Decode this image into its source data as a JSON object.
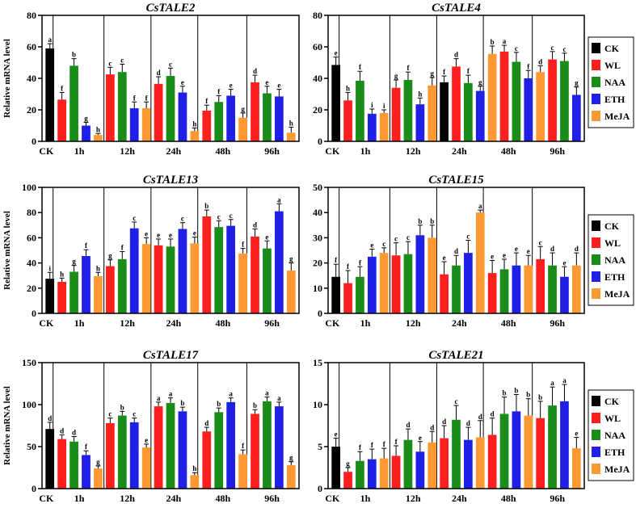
{
  "y_label": "Relative mRNA level",
  "legend": {
    "entries": [
      "CK",
      "WL",
      "NAA",
      "ETH",
      "MeJA"
    ],
    "colors": [
      "#000000",
      "#ff1f1f",
      "#1a8c1a",
      "#1f1fe6",
      "#ff9933"
    ]
  },
  "chart_data": [
    {
      "type": "bar",
      "title": "CsTALE2",
      "ylim": [
        0,
        80
      ],
      "yticks": [
        0,
        20,
        40,
        60,
        80
      ],
      "groups": [
        "CK",
        "1h",
        "12h",
        "24h",
        "48h",
        "96h"
      ],
      "bars": [
        {
          "series": "CK",
          "value": 59,
          "error": 3,
          "label": "a"
        },
        {
          "series": "WL",
          "value": 26.5,
          "error": 4.5,
          "label": "f"
        },
        {
          "series": "NAA",
          "value": 48,
          "error": 4.5,
          "label": "b"
        },
        {
          "series": "ETH",
          "value": 10,
          "error": 2,
          "label": "g"
        },
        {
          "series": "MeJA",
          "value": 4,
          "error": 1,
          "label": "h"
        },
        {
          "series": "WL",
          "value": 42.5,
          "error": 4.5,
          "label": "c"
        },
        {
          "series": "NAA",
          "value": 44,
          "error": 5,
          "label": "c"
        },
        {
          "series": "ETH",
          "value": 21,
          "error": 4,
          "label": "f"
        },
        {
          "series": "MeJA",
          "value": 21,
          "error": 4,
          "label": "f"
        },
        {
          "series": "WL",
          "value": 36.5,
          "error": 4.5,
          "label": "d"
        },
        {
          "series": "NAA",
          "value": 41.5,
          "error": 5,
          "label": "c"
        },
        {
          "series": "ETH",
          "value": 31,
          "error": 4,
          "label": "e"
        },
        {
          "series": "MeJA",
          "value": 6.5,
          "error": 2,
          "label": "h"
        },
        {
          "series": "WL",
          "value": 19.5,
          "error": 3.5,
          "label": "f"
        },
        {
          "series": "NAA",
          "value": 25,
          "error": 4,
          "label": "f"
        },
        {
          "series": "ETH",
          "value": 29,
          "error": 4,
          "label": "e"
        },
        {
          "series": "MeJA",
          "value": 15,
          "error": 3,
          "label": "g"
        },
        {
          "series": "WL",
          "value": 37.5,
          "error": 4.5,
          "label": "d"
        },
        {
          "series": "NAA",
          "value": 30.5,
          "error": 4.5,
          "label": "e"
        },
        {
          "series": "ETH",
          "value": 28.5,
          "error": 4.5,
          "label": "e"
        },
        {
          "series": "MeJA",
          "value": 5.5,
          "error": 3.5,
          "label": "h"
        }
      ]
    },
    {
      "type": "bar",
      "title": "CsTALE4",
      "ylim": [
        0,
        80
      ],
      "yticks": [
        0,
        20,
        40,
        60,
        80
      ],
      "groups": [
        "CK",
        "1h",
        "12h",
        "24h",
        "48h",
        "96h"
      ],
      "bars": [
        {
          "series": "CK",
          "value": 48.5,
          "error": 5,
          "label": "e"
        },
        {
          "series": "WL",
          "value": 26,
          "error": 5,
          "label": "h"
        },
        {
          "series": "NAA",
          "value": 38.5,
          "error": 6,
          "label": "f"
        },
        {
          "series": "ETH",
          "value": 17.5,
          "error": 3,
          "label": "i"
        },
        {
          "series": "MeJA",
          "value": 18,
          "error": 2,
          "label": "i"
        },
        {
          "series": "WL",
          "value": 34,
          "error": 5,
          "label": "g"
        },
        {
          "series": "NAA",
          "value": 39,
          "error": 5,
          "label": "f"
        },
        {
          "series": "ETH",
          "value": 23.5,
          "error": 4,
          "label": "h"
        },
        {
          "series": "MeJA",
          "value": 35.5,
          "error": 5,
          "label": "g"
        },
        {
          "series": "CK",
          "value": 37.5,
          "error": 4,
          "label": "f"
        },
        {
          "series": "WL",
          "value": 47.5,
          "error": 5,
          "label": "d"
        },
        {
          "series": "NAA",
          "value": 37,
          "error": 5,
          "label": "f"
        },
        {
          "series": "ETH",
          "value": 32,
          "error": 3,
          "label": "g"
        },
        {
          "series": "MeJA",
          "value": 55.5,
          "error": 5,
          "label": "b"
        },
        {
          "series": "WL",
          "value": 57,
          "error": 4,
          "label": "a"
        },
        {
          "series": "NAA",
          "value": 50.5,
          "error": 6,
          "label": "c"
        },
        {
          "series": "ETH",
          "value": 40,
          "error": 5,
          "label": "f"
        },
        {
          "series": "MeJA",
          "value": 44,
          "error": 4,
          "label": "d"
        },
        {
          "series": "WL",
          "value": 52,
          "error": 5,
          "label": "c"
        },
        {
          "series": "NAA",
          "value": 51,
          "error": 5,
          "label": "c"
        },
        {
          "series": "ETH",
          "value": 29.5,
          "error": 5,
          "label": "g"
        }
      ]
    },
    {
      "type": "bar",
      "title": "CsTALE13",
      "ylim": [
        0,
        100
      ],
      "yticks": [
        0,
        20,
        40,
        60,
        80,
        100
      ],
      "groups": [
        "CK",
        "1h",
        "12h",
        "24h",
        "48h",
        "96h"
      ],
      "bars": [
        {
          "series": "CK",
          "value": 27.5,
          "error": 5,
          "label": "i"
        },
        {
          "series": "WL",
          "value": 25,
          "error": 3,
          "label": "h"
        },
        {
          "series": "NAA",
          "value": 33,
          "error": 5,
          "label": "g"
        },
        {
          "series": "ETH",
          "value": 45.5,
          "error": 5,
          "label": "f"
        },
        {
          "series": "MeJA",
          "value": 29.5,
          "error": 3,
          "label": "h"
        },
        {
          "series": "WL",
          "value": 37.5,
          "error": 5,
          "label": "g"
        },
        {
          "series": "NAA",
          "value": 43,
          "error": 6,
          "label": "f"
        },
        {
          "series": "ETH",
          "value": 67.5,
          "error": 5,
          "label": "c"
        },
        {
          "series": "MeJA",
          "value": 55,
          "error": 5,
          "label": "e"
        },
        {
          "series": "WL",
          "value": 54,
          "error": 5,
          "label": "e"
        },
        {
          "series": "NAA",
          "value": 53,
          "error": 6,
          "label": "e"
        },
        {
          "series": "ETH",
          "value": 67,
          "error": 5,
          "label": "c"
        },
        {
          "series": "MeJA",
          "value": 55.5,
          "error": 5,
          "label": "e"
        },
        {
          "series": "WL",
          "value": 77,
          "error": 5,
          "label": "b"
        },
        {
          "series": "NAA",
          "value": 68.5,
          "error": 5,
          "label": "c"
        },
        {
          "series": "ETH",
          "value": 69.5,
          "error": 5,
          "label": "c"
        },
        {
          "series": "MeJA",
          "value": 47.5,
          "error": 4,
          "label": "f"
        },
        {
          "series": "WL",
          "value": 61,
          "error": 6,
          "label": "d"
        },
        {
          "series": "NAA",
          "value": 51.5,
          "error": 6,
          "label": "e"
        },
        {
          "series": "ETH",
          "value": 81,
          "error": 6,
          "label": "a"
        },
        {
          "series": "MeJA",
          "value": 34,
          "error": 6,
          "label": "g"
        }
      ]
    },
    {
      "type": "bar",
      "title": "CsTALE15",
      "ylim": [
        0,
        50
      ],
      "yticks": [
        0,
        10,
        20,
        30,
        40,
        50
      ],
      "groups": [
        "CK",
        "1h",
        "12h",
        "24h",
        "48h",
        "96h"
      ],
      "bars": [
        {
          "series": "CK",
          "value": 14.5,
          "error": 5,
          "label": "f"
        },
        {
          "series": "WL",
          "value": 12,
          "error": 5,
          "label": "f"
        },
        {
          "series": "NAA",
          "value": 14.5,
          "error": 4,
          "label": "f"
        },
        {
          "series": "ETH",
          "value": 22.5,
          "error": 3,
          "label": "e"
        },
        {
          "series": "MeJA",
          "value": 24,
          "error": 2,
          "label": "c"
        },
        {
          "series": "WL",
          "value": 23,
          "error": 5,
          "label": "c"
        },
        {
          "series": "NAA",
          "value": 23.5,
          "error": 5,
          "label": "c"
        },
        {
          "series": "ETH",
          "value": 31,
          "error": 4,
          "label": "b"
        },
        {
          "series": "MeJA",
          "value": 30,
          "error": 5,
          "label": "b"
        },
        {
          "series": "WL",
          "value": 15.5,
          "error": 5,
          "label": "e"
        },
        {
          "series": "NAA",
          "value": 19,
          "error": 4,
          "label": "d"
        },
        {
          "series": "ETH",
          "value": 24,
          "error": 5,
          "label": "c"
        },
        {
          "series": "MeJA",
          "value": 40,
          "error": 1,
          "label": "a"
        },
        {
          "series": "WL",
          "value": 16,
          "error": 5,
          "label": "e"
        },
        {
          "series": "NAA",
          "value": 17.5,
          "error": 4,
          "label": "e"
        },
        {
          "series": "ETH",
          "value": 19,
          "error": 5,
          "label": "e"
        },
        {
          "series": "MeJA",
          "value": 19,
          "error": 4,
          "label": "e"
        },
        {
          "series": "WL",
          "value": 21.5,
          "error": 5,
          "label": "c"
        },
        {
          "series": "NAA",
          "value": 19,
          "error": 5,
          "label": "d"
        },
        {
          "series": "ETH",
          "value": 14.5,
          "error": 4,
          "label": "e"
        },
        {
          "series": "MeJA",
          "value": 19,
          "error": 5,
          "label": "d"
        }
      ]
    },
    {
      "type": "bar",
      "title": "CsTALE17",
      "ylim": [
        0,
        150
      ],
      "yticks": [
        0,
        50,
        100,
        150
      ],
      "groups": [
        "CK",
        "1h",
        "12h",
        "24h",
        "48h",
        "96h"
      ],
      "bars": [
        {
          "series": "CK",
          "value": 71,
          "error": 8,
          "label": "d"
        },
        {
          "series": "WL",
          "value": 59,
          "error": 5,
          "label": "d"
        },
        {
          "series": "NAA",
          "value": 56,
          "error": 6,
          "label": "d"
        },
        {
          "series": "ETH",
          "value": 40,
          "error": 5,
          "label": "f"
        },
        {
          "series": "MeJA",
          "value": 24,
          "error": 3,
          "label": "g"
        },
        {
          "series": "WL",
          "value": 78,
          "error": 6,
          "label": "c"
        },
        {
          "series": "NAA",
          "value": 87,
          "error": 5,
          "label": "b"
        },
        {
          "series": "ETH",
          "value": 79,
          "error": 5,
          "label": "c"
        },
        {
          "series": "MeJA",
          "value": 49,
          "error": 4,
          "label": "e"
        },
        {
          "series": "WL",
          "value": 98,
          "error": 5,
          "label": "a"
        },
        {
          "series": "NAA",
          "value": 102,
          "error": 6,
          "label": "a"
        },
        {
          "series": "ETH",
          "value": 92,
          "error": 5,
          "label": "b"
        },
        {
          "series": "MeJA",
          "value": 16,
          "error": 3,
          "label": "h"
        },
        {
          "series": "WL",
          "value": 68,
          "error": 5,
          "label": "d"
        },
        {
          "series": "NAA",
          "value": 91,
          "error": 5,
          "label": "b"
        },
        {
          "series": "ETH",
          "value": 103,
          "error": 5,
          "label": "a"
        },
        {
          "series": "MeJA",
          "value": 41,
          "error": 5,
          "label": "f"
        },
        {
          "series": "WL",
          "value": 89,
          "error": 5,
          "label": "b"
        },
        {
          "series": "NAA",
          "value": 104,
          "error": 5,
          "label": "a"
        },
        {
          "series": "ETH",
          "value": 98,
          "error": 5,
          "label": "a"
        },
        {
          "series": "MeJA",
          "value": 28,
          "error": 4,
          "label": "g"
        }
      ]
    },
    {
      "type": "bar",
      "title": "CsTALE21",
      "ylim": [
        0,
        15
      ],
      "yticks": [
        0,
        5,
        10,
        15
      ],
      "groups": [
        "CK",
        "1h",
        "12h",
        "24h",
        "48h",
        "96h"
      ],
      "bars": [
        {
          "series": "CK",
          "value": 5,
          "error": 1,
          "label": "e"
        },
        {
          "series": "WL",
          "value": 2,
          "error": 0.5,
          "label": "g"
        },
        {
          "series": "NAA",
          "value": 3.3,
          "error": 1.1,
          "label": "f"
        },
        {
          "series": "ETH",
          "value": 3.5,
          "error": 1.2,
          "label": "f"
        },
        {
          "series": "MeJA",
          "value": 3.6,
          "error": 1.2,
          "label": "f"
        },
        {
          "series": "WL",
          "value": 3.9,
          "error": 1.2,
          "label": "f"
        },
        {
          "series": "NAA",
          "value": 5.8,
          "error": 1.3,
          "label": "d"
        },
        {
          "series": "ETH",
          "value": 4.4,
          "error": 1.2,
          "label": "e"
        },
        {
          "series": "MeJA",
          "value": 5.5,
          "error": 1.3,
          "label": "d"
        },
        {
          "series": "WL",
          "value": 6,
          "error": 1.5,
          "label": "d"
        },
        {
          "series": "NAA",
          "value": 8.2,
          "error": 1.7,
          "label": "c"
        },
        {
          "series": "ETH",
          "value": 5.8,
          "error": 1.5,
          "label": "d"
        },
        {
          "series": "MeJA",
          "value": 6.1,
          "error": 2,
          "label": "d"
        },
        {
          "series": "WL",
          "value": 6.4,
          "error": 2,
          "label": "d"
        },
        {
          "series": "NAA",
          "value": 8.9,
          "error": 2,
          "label": "b"
        },
        {
          "series": "ETH",
          "value": 9.2,
          "error": 2,
          "label": "b"
        },
        {
          "series": "MeJA",
          "value": 8.7,
          "error": 2,
          "label": "b"
        },
        {
          "series": "WL",
          "value": 8.4,
          "error": 2,
          "label": "b"
        },
        {
          "series": "NAA",
          "value": 9.9,
          "error": 2.2,
          "label": "a"
        },
        {
          "series": "ETH",
          "value": 10.4,
          "error": 2,
          "label": "a"
        },
        {
          "series": "MeJA",
          "value": 4.8,
          "error": 1.3,
          "label": "e"
        }
      ]
    }
  ]
}
